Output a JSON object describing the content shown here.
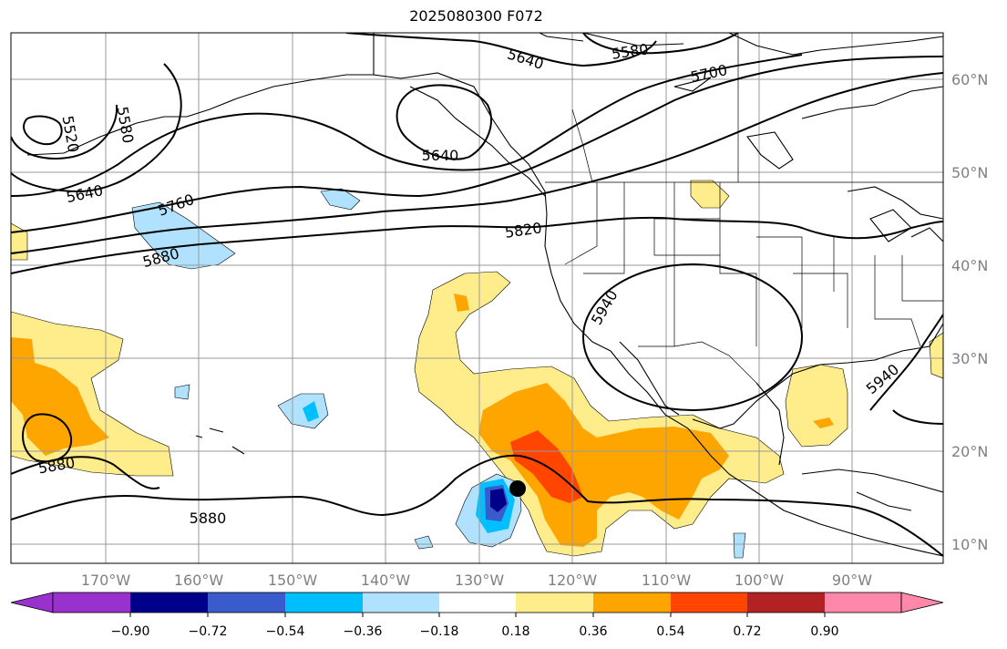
{
  "title": "2025080300 F072",
  "map": {
    "lon_labels": [
      "170°W",
      "160°W",
      "150°W",
      "140°W",
      "130°W",
      "120°W",
      "110°W",
      "100°W",
      "90°W"
    ],
    "lat_labels": [
      "60°N",
      "50°N",
      "40°N",
      "30°N",
      "20°N",
      "10°N"
    ],
    "contour_labels": [
      "5640",
      "5580",
      "5700",
      "5520",
      "5580",
      "5640",
      "5640",
      "5760",
      "5820",
      "5880",
      "5940",
      "5940",
      "5880",
      "5880"
    ],
    "storm_marker": "tropical-cyclone-center"
  },
  "colorbar": {
    "tick_labels": [
      "−0.90",
      "−0.72",
      "−0.54",
      "−0.36",
      "−0.18",
      "0.18",
      "0.36",
      "0.54",
      "0.72",
      "0.90"
    ],
    "colors": [
      "#9932cc",
      "#00008b",
      "#3a5bcc",
      "#00bfff",
      "#b0e2ff",
      "#ffffff",
      "#ffec8b",
      "#ffa500",
      "#ff4500",
      "#b22222",
      "#ff88aa"
    ]
  }
}
